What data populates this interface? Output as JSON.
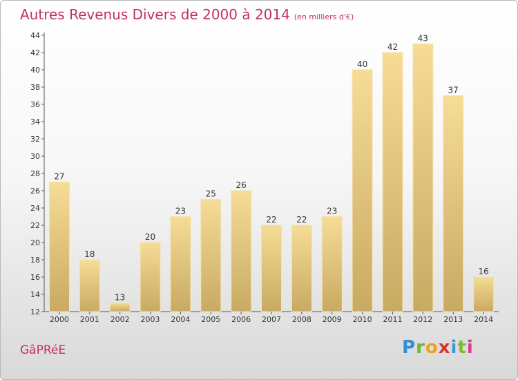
{
  "header": {
    "title": "Autres Revenus Divers de 2000 à 2014",
    "subtitle": "(en milliers d'€)"
  },
  "footer": {
    "town": "GâPRéE",
    "brand": [
      "P",
      "r",
      "o",
      "x",
      "i",
      "t",
      "i"
    ]
  },
  "chart_data": {
    "type": "bar",
    "title": "Autres Revenus Divers de 2000 à 2014",
    "subtitle": "(en milliers d'€)",
    "xlabel": "",
    "ylabel": "",
    "categories": [
      "2000",
      "2001",
      "2002",
      "2003",
      "2004",
      "2005",
      "2006",
      "2007",
      "2008",
      "2009",
      "2010",
      "2011",
      "2012",
      "2013",
      "2014"
    ],
    "values": [
      27,
      18,
      13,
      20,
      23,
      25,
      26,
      22,
      22,
      23,
      40,
      42,
      43,
      37,
      16
    ],
    "ylim": [
      12,
      44
    ],
    "yticks": [
      12,
      14,
      16,
      18,
      20,
      22,
      24,
      26,
      28,
      30,
      32,
      34,
      36,
      38,
      40,
      42,
      44
    ],
    "grid": false,
    "legend": "none",
    "bar_color": "#e3c67f"
  }
}
